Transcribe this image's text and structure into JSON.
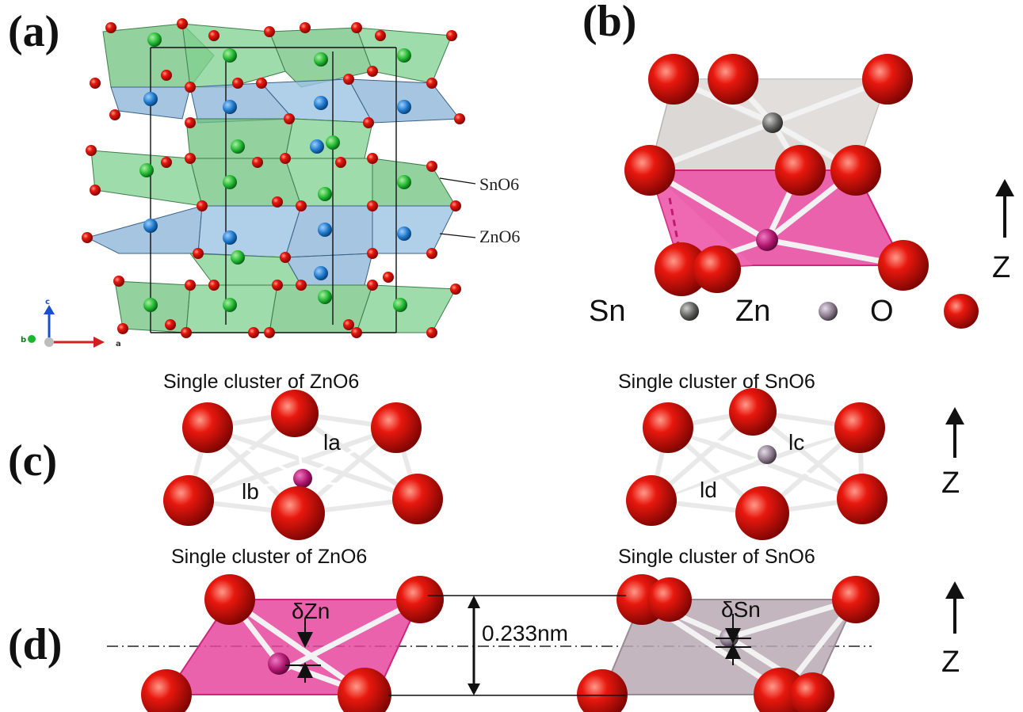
{
  "panels": {
    "a": {
      "label": "(a)",
      "annotation_sn": "SnO6",
      "annotation_zn": "ZnO6",
      "axes": {
        "c": "c",
        "b": "b",
        "a": "a"
      },
      "colors": {
        "sn_octahedron": "#6fc17f",
        "zn_octahedron": "#8fb6d9",
        "oxygen": "#e01515",
        "sn_atom": "#1db52e",
        "zn_atom": "#1a75c9"
      }
    },
    "b": {
      "label": "(b)",
      "axis_label": "Z",
      "legend": {
        "sn": "Sn",
        "zn": "Zn",
        "o": "O"
      },
      "colors": {
        "sn_atom": "#6d6d6b",
        "zn_atom": "#8a7a8c",
        "oxygen": "#e21a10",
        "sn_octahedron": "#d8d4d1",
        "zn_octahedron": "#e8479e"
      }
    },
    "c": {
      "label": "(c)",
      "title_left": "Single cluster of ZnO6",
      "title_right": "Single cluster of SnO6",
      "bond_la": "la",
      "bond_lb": "lb",
      "bond_lc": "lc",
      "bond_ld": "ld",
      "axis_label": "Z"
    },
    "d": {
      "label": "(d)",
      "title_left": "Single cluster of ZnO6",
      "title_right": "Single cluster of SnO6",
      "delta_zn": "δZn",
      "delta_sn": "δSn",
      "distance": "0.233nm",
      "axis_label": "Z"
    }
  },
  "icons": [
    "sn-atom-icon",
    "zn-atom-icon",
    "oxygen-atom-icon",
    "up-arrow-icon"
  ]
}
